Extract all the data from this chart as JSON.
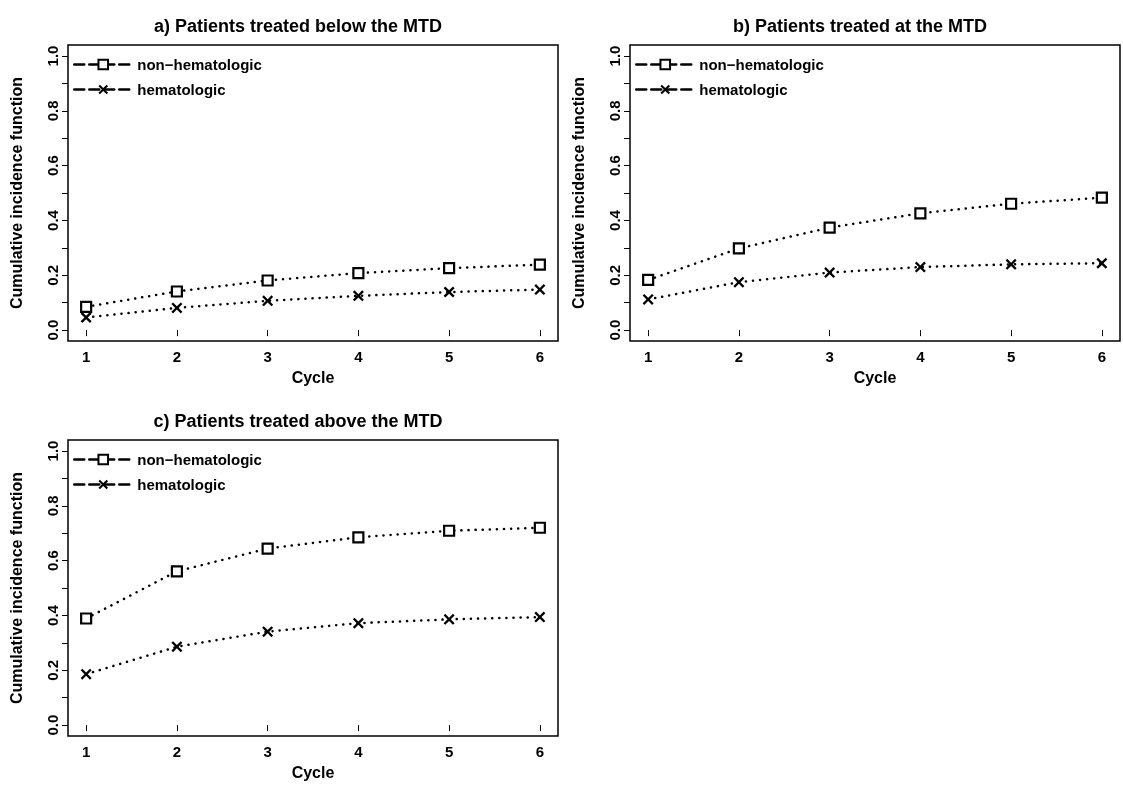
{
  "chart_data": [
    {
      "type": "line",
      "title": "a) Patients treated below the MTD",
      "xlabel": "Cycle",
      "ylabel": "Cumulative incidence function",
      "x": [
        1,
        2,
        3,
        4,
        5,
        6
      ],
      "series": [
        {
          "name": "non−hematologic",
          "color": "#000000",
          "marker": "square",
          "values": [
            0.085,
            0.141,
            0.181,
            0.208,
            0.226,
            0.239
          ]
        },
        {
          "name": "hematologic",
          "color": "#000000",
          "marker": "cross",
          "values": [
            0.046,
            0.081,
            0.107,
            0.125,
            0.139,
            0.148
          ]
        }
      ],
      "xlim": [
        0.8,
        6.2
      ],
      "xticks": [
        1,
        2,
        3,
        4,
        5,
        6
      ],
      "ylim": [
        -0.04,
        1.04
      ],
      "yticks": [
        {
          "value": 0,
          "label": "0.0"
        },
        {
          "value": 0.1,
          "label": null
        },
        0.2,
        {
          "value": 0.3,
          "label": null
        },
        0.4,
        {
          "value": 0.5,
          "label": null
        },
        0.6,
        {
          "value": 0.7,
          "label": null
        },
        0.8,
        {
          "value": 0.9,
          "label": null
        },
        {
          "value": 1,
          "label": "1.0"
        }
      ],
      "legend": "top left",
      "grid": false,
      "line_style": "dotted"
    },
    {
      "type": "line",
      "title": "b) Patients treated at the MTD",
      "xlabel": "Cycle",
      "ylabel": "Cumulative incidence function",
      "x": [
        1,
        2,
        3,
        4,
        5,
        6
      ],
      "series": [
        {
          "name": "non−hematologic",
          "color": "#000000",
          "marker": "square",
          "values": [
            0.183,
            0.298,
            0.374,
            0.426,
            0.461,
            0.483
          ]
        },
        {
          "name": "hematologic",
          "color": "#000000",
          "marker": "cross",
          "values": [
            0.112,
            0.175,
            0.21,
            0.23,
            0.24,
            0.244
          ]
        }
      ],
      "xlim": [
        0.8,
        6.2
      ],
      "xticks": [
        1,
        2,
        3,
        4,
        5,
        6
      ],
      "ylim": [
        -0.04,
        1.04
      ],
      "yticks": [
        {
          "value": 0,
          "label": "0.0"
        },
        {
          "value": 0.1,
          "label": null
        },
        0.2,
        {
          "value": 0.3,
          "label": null
        },
        0.4,
        {
          "value": 0.5,
          "label": null
        },
        0.6,
        {
          "value": 0.7,
          "label": null
        },
        0.8,
        {
          "value": 0.9,
          "label": null
        },
        {
          "value": 1,
          "label": "1.0"
        }
      ],
      "legend": "top left",
      "grid": false,
      "line_style": "dotted"
    },
    {
      "type": "line",
      "title": "c) Patients treated above the MTD",
      "xlabel": "Cycle",
      "ylabel": "Cumulative incidence function",
      "x": [
        1,
        2,
        3,
        4,
        5,
        6
      ],
      "series": [
        {
          "name": "non−hematologic",
          "color": "#000000",
          "marker": "square",
          "values": [
            0.389,
            0.561,
            0.644,
            0.685,
            0.709,
            0.72
          ]
        },
        {
          "name": "hematologic",
          "color": "#000000",
          "marker": "cross",
          "values": [
            0.186,
            0.286,
            0.341,
            0.372,
            0.386,
            0.394
          ]
        }
      ],
      "xlim": [
        0.8,
        6.2
      ],
      "xticks": [
        1,
        2,
        3,
        4,
        5,
        6
      ],
      "ylim": [
        -0.04,
        1.04
      ],
      "yticks": [
        {
          "value": 0,
          "label": "0.0"
        },
        {
          "value": 0.1,
          "label": null
        },
        0.2,
        {
          "value": 0.3,
          "label": null
        },
        0.4,
        {
          "value": 0.5,
          "label": null
        },
        0.6,
        {
          "value": 0.7,
          "label": null
        },
        0.8,
        {
          "value": 0.9,
          "label": null
        },
        {
          "value": 1,
          "label": "1.0"
        }
      ],
      "legend": "top left",
      "grid": false,
      "line_style": "dotted"
    }
  ]
}
